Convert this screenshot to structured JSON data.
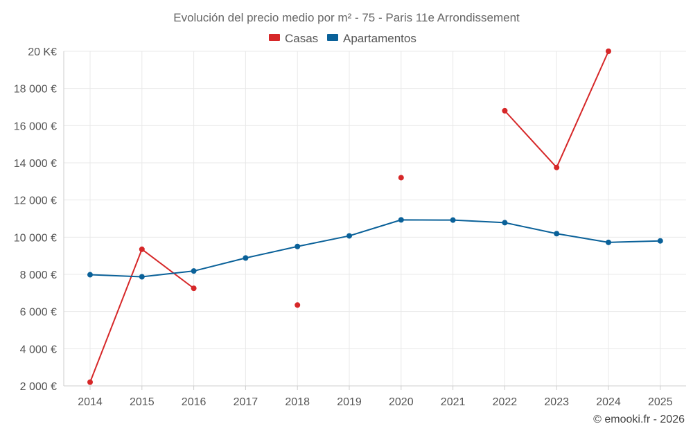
{
  "chart_data": {
    "type": "line",
    "title": "Evolución del precio medio por m² - 75 - Paris 11e Arrondissement",
    "categories": [
      "2014",
      "2015",
      "2016",
      "2017",
      "2018",
      "2019",
      "2020",
      "2021",
      "2022",
      "2023",
      "2024",
      "2025"
    ],
    "y_ticks": [
      2000,
      4000,
      6000,
      8000,
      10000,
      12000,
      14000,
      16000,
      18000,
      20000
    ],
    "y_tick_labels": [
      "2 000 €",
      "4 000 €",
      "6 000 €",
      "8 000 €",
      "10 000 €",
      "12 000 €",
      "14 000 €",
      "16 000 €",
      "18 000 €",
      "20 K€"
    ],
    "ylim": [
      2000,
      20000
    ],
    "series": [
      {
        "name": "Casas",
        "color": "#d62728",
        "values": [
          2200,
          9350,
          7250,
          null,
          6350,
          null,
          13200,
          null,
          16800,
          13750,
          20000,
          null
        ]
      },
      {
        "name": "Apartamentos",
        "color": "#0a6199",
        "values": [
          7980,
          7870,
          8180,
          8880,
          9500,
          10070,
          10930,
          10920,
          10780,
          10190,
          9720,
          9800
        ]
      }
    ],
    "credit": "© emooki.fr - 2026"
  }
}
